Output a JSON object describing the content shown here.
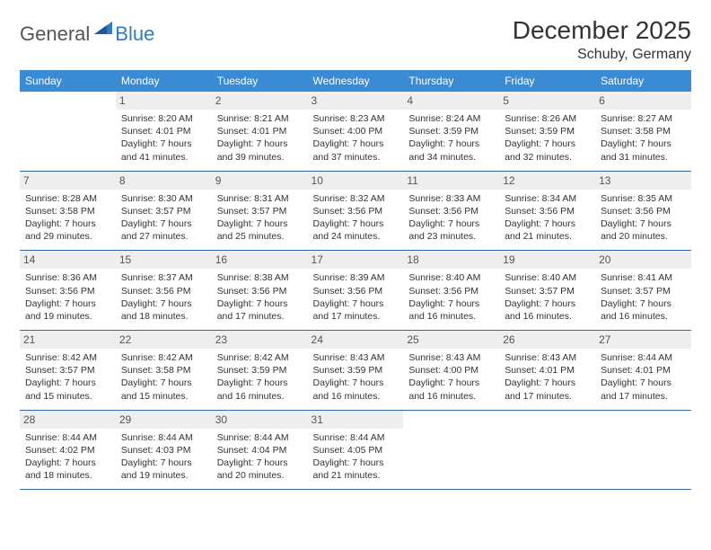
{
  "logo": {
    "part1": "General",
    "part2": "Blue"
  },
  "title": "December 2025",
  "location": "Schuby, Germany",
  "columns": [
    "Sunday",
    "Monday",
    "Tuesday",
    "Wednesday",
    "Thursday",
    "Friday",
    "Saturday"
  ],
  "colors": {
    "header_bg": "#3b8bd4",
    "header_text": "#ffffff",
    "daynum_bg": "#eeeeee",
    "row_divider": "#2f6aa8",
    "text": "#333333",
    "logo_gray": "#555555",
    "logo_blue": "#2f7bc4"
  },
  "weeks": [
    [
      null,
      {
        "n": "1",
        "sr": "Sunrise: 8:20 AM",
        "ss": "Sunset: 4:01 PM",
        "d1": "Daylight: 7 hours",
        "d2": "and 41 minutes."
      },
      {
        "n": "2",
        "sr": "Sunrise: 8:21 AM",
        "ss": "Sunset: 4:01 PM",
        "d1": "Daylight: 7 hours",
        "d2": "and 39 minutes."
      },
      {
        "n": "3",
        "sr": "Sunrise: 8:23 AM",
        "ss": "Sunset: 4:00 PM",
        "d1": "Daylight: 7 hours",
        "d2": "and 37 minutes."
      },
      {
        "n": "4",
        "sr": "Sunrise: 8:24 AM",
        "ss": "Sunset: 3:59 PM",
        "d1": "Daylight: 7 hours",
        "d2": "and 34 minutes."
      },
      {
        "n": "5",
        "sr": "Sunrise: 8:26 AM",
        "ss": "Sunset: 3:59 PM",
        "d1": "Daylight: 7 hours",
        "d2": "and 32 minutes."
      },
      {
        "n": "6",
        "sr": "Sunrise: 8:27 AM",
        "ss": "Sunset: 3:58 PM",
        "d1": "Daylight: 7 hours",
        "d2": "and 31 minutes."
      }
    ],
    [
      {
        "n": "7",
        "sr": "Sunrise: 8:28 AM",
        "ss": "Sunset: 3:58 PM",
        "d1": "Daylight: 7 hours",
        "d2": "and 29 minutes."
      },
      {
        "n": "8",
        "sr": "Sunrise: 8:30 AM",
        "ss": "Sunset: 3:57 PM",
        "d1": "Daylight: 7 hours",
        "d2": "and 27 minutes."
      },
      {
        "n": "9",
        "sr": "Sunrise: 8:31 AM",
        "ss": "Sunset: 3:57 PM",
        "d1": "Daylight: 7 hours",
        "d2": "and 25 minutes."
      },
      {
        "n": "10",
        "sr": "Sunrise: 8:32 AM",
        "ss": "Sunset: 3:56 PM",
        "d1": "Daylight: 7 hours",
        "d2": "and 24 minutes."
      },
      {
        "n": "11",
        "sr": "Sunrise: 8:33 AM",
        "ss": "Sunset: 3:56 PM",
        "d1": "Daylight: 7 hours",
        "d2": "and 23 minutes."
      },
      {
        "n": "12",
        "sr": "Sunrise: 8:34 AM",
        "ss": "Sunset: 3:56 PM",
        "d1": "Daylight: 7 hours",
        "d2": "and 21 minutes."
      },
      {
        "n": "13",
        "sr": "Sunrise: 8:35 AM",
        "ss": "Sunset: 3:56 PM",
        "d1": "Daylight: 7 hours",
        "d2": "and 20 minutes."
      }
    ],
    [
      {
        "n": "14",
        "sr": "Sunrise: 8:36 AM",
        "ss": "Sunset: 3:56 PM",
        "d1": "Daylight: 7 hours",
        "d2": "and 19 minutes."
      },
      {
        "n": "15",
        "sr": "Sunrise: 8:37 AM",
        "ss": "Sunset: 3:56 PM",
        "d1": "Daylight: 7 hours",
        "d2": "and 18 minutes."
      },
      {
        "n": "16",
        "sr": "Sunrise: 8:38 AM",
        "ss": "Sunset: 3:56 PM",
        "d1": "Daylight: 7 hours",
        "d2": "and 17 minutes."
      },
      {
        "n": "17",
        "sr": "Sunrise: 8:39 AM",
        "ss": "Sunset: 3:56 PM",
        "d1": "Daylight: 7 hours",
        "d2": "and 17 minutes."
      },
      {
        "n": "18",
        "sr": "Sunrise: 8:40 AM",
        "ss": "Sunset: 3:56 PM",
        "d1": "Daylight: 7 hours",
        "d2": "and 16 minutes."
      },
      {
        "n": "19",
        "sr": "Sunrise: 8:40 AM",
        "ss": "Sunset: 3:57 PM",
        "d1": "Daylight: 7 hours",
        "d2": "and 16 minutes."
      },
      {
        "n": "20",
        "sr": "Sunrise: 8:41 AM",
        "ss": "Sunset: 3:57 PM",
        "d1": "Daylight: 7 hours",
        "d2": "and 16 minutes."
      }
    ],
    [
      {
        "n": "21",
        "sr": "Sunrise: 8:42 AM",
        "ss": "Sunset: 3:57 PM",
        "d1": "Daylight: 7 hours",
        "d2": "and 15 minutes."
      },
      {
        "n": "22",
        "sr": "Sunrise: 8:42 AM",
        "ss": "Sunset: 3:58 PM",
        "d1": "Daylight: 7 hours",
        "d2": "and 15 minutes."
      },
      {
        "n": "23",
        "sr": "Sunrise: 8:42 AM",
        "ss": "Sunset: 3:59 PM",
        "d1": "Daylight: 7 hours",
        "d2": "and 16 minutes."
      },
      {
        "n": "24",
        "sr": "Sunrise: 8:43 AM",
        "ss": "Sunset: 3:59 PM",
        "d1": "Daylight: 7 hours",
        "d2": "and 16 minutes."
      },
      {
        "n": "25",
        "sr": "Sunrise: 8:43 AM",
        "ss": "Sunset: 4:00 PM",
        "d1": "Daylight: 7 hours",
        "d2": "and 16 minutes."
      },
      {
        "n": "26",
        "sr": "Sunrise: 8:43 AM",
        "ss": "Sunset: 4:01 PM",
        "d1": "Daylight: 7 hours",
        "d2": "and 17 minutes."
      },
      {
        "n": "27",
        "sr": "Sunrise: 8:44 AM",
        "ss": "Sunset: 4:01 PM",
        "d1": "Daylight: 7 hours",
        "d2": "and 17 minutes."
      }
    ],
    [
      {
        "n": "28",
        "sr": "Sunrise: 8:44 AM",
        "ss": "Sunset: 4:02 PM",
        "d1": "Daylight: 7 hours",
        "d2": "and 18 minutes."
      },
      {
        "n": "29",
        "sr": "Sunrise: 8:44 AM",
        "ss": "Sunset: 4:03 PM",
        "d1": "Daylight: 7 hours",
        "d2": "and 19 minutes."
      },
      {
        "n": "30",
        "sr": "Sunrise: 8:44 AM",
        "ss": "Sunset: 4:04 PM",
        "d1": "Daylight: 7 hours",
        "d2": "and 20 minutes."
      },
      {
        "n": "31",
        "sr": "Sunrise: 8:44 AM",
        "ss": "Sunset: 4:05 PM",
        "d1": "Daylight: 7 hours",
        "d2": "and 21 minutes."
      },
      null,
      null,
      null
    ]
  ]
}
